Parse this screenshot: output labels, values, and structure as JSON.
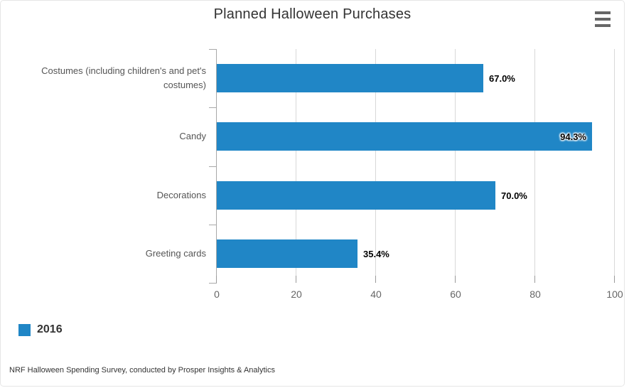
{
  "chart_data": {
    "type": "bar",
    "orientation": "horizontal",
    "title": "Planned Halloween Purchases",
    "categories": [
      "Costumes (including children's and pet's costumes)",
      "Candy",
      "Decorations",
      "Greeting cards"
    ],
    "series": [
      {
        "name": "2016",
        "values": [
          67.0,
          94.3,
          70.0,
          35.4
        ],
        "color": "#2086C6"
      }
    ],
    "value_labels": [
      "67.0%",
      "94.3%",
      "70.0%",
      "35.4%"
    ],
    "xticks": [
      0,
      20,
      40,
      60,
      80,
      100
    ],
    "xlim": [
      0,
      100
    ],
    "grid": true,
    "legend_position": "bottom-left",
    "source": "NRF Halloween Spending Survey, conducted by Prosper Insights & Analytics"
  },
  "ui": {
    "menu_icon": "hamburger",
    "colors": {
      "bar": "#2086C6",
      "gridline": "#D8D8D8",
      "axis": "#A8A8A8",
      "title_text": "#333333",
      "category_text": "#555555",
      "tick_text": "#666666",
      "data_label_text": "#000000"
    }
  }
}
